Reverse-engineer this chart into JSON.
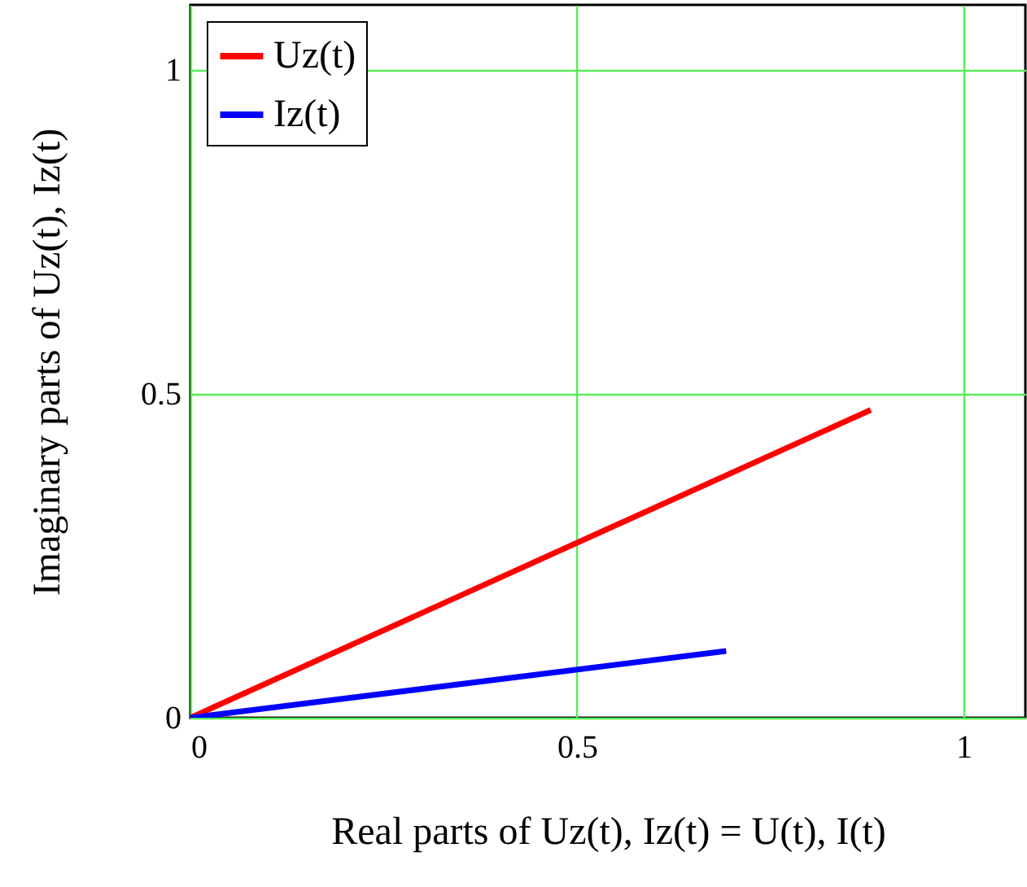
{
  "chart_data": {
    "type": "line",
    "xlabel": "Real parts of Uz(t), Iz(t) = U(t), I(t)",
    "ylabel": "Imaginary parts of Uz(t), Iz(t)",
    "xlim": [
      0,
      1.08
    ],
    "ylim": [
      0,
      1.1
    ],
    "xticks": [
      0,
      0.5,
      1
    ],
    "yticks": [
      0,
      0.5,
      1
    ],
    "grid": true,
    "legend": "top left",
    "line_style": "solid",
    "series": [
      {
        "name": "Uz(t)",
        "color": "#ff0000",
        "x": [
          0,
          0.88
        ],
        "values": [
          0,
          0.475
        ]
      },
      {
        "name": "Iz(t)",
        "color": "#0000ff",
        "x": [
          0,
          0.693
        ],
        "values": [
          0,
          0.103
        ]
      }
    ]
  }
}
